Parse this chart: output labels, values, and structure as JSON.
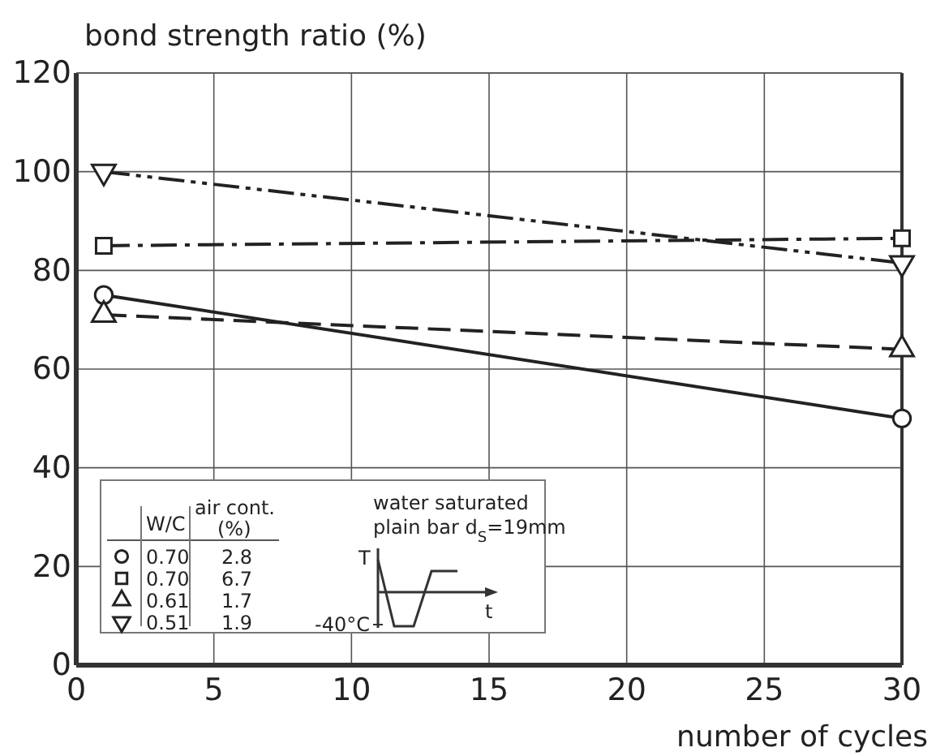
{
  "chart_data": {
    "type": "line",
    "xlabel": "number of cycles",
    "ylabel": "bond strength ratio (%)",
    "x": [
      1,
      30
    ],
    "xlim": [
      0,
      30
    ],
    "xticks": [
      0,
      5,
      10,
      15,
      20,
      25,
      30
    ],
    "ylim": [
      0,
      120
    ],
    "yticks": [
      0,
      20,
      40,
      60,
      80,
      100,
      120
    ],
    "grid": true,
    "legend": "bottom left",
    "series": [
      {
        "name": "0.70",
        "color": "#222222",
        "values": [
          75,
          50
        ],
        "marker": "circle",
        "line_style": "solid"
      },
      {
        "name": "0.70",
        "color": "#222222",
        "values": [
          85,
          86.5
        ],
        "marker": "square",
        "line_style": "dashdot"
      },
      {
        "name": "0.61",
        "color": "#222222",
        "values": [
          71,
          64
        ],
        "marker": "triangle",
        "line_style": "dashed"
      },
      {
        "name": "0.51",
        "color": "#222222",
        "values": [
          100,
          81.5
        ],
        "marker": "triangle-down",
        "line_style": "dashdotdot"
      }
    ],
    "annotations": [
      "W/C",
      "air cont.",
      "(%)",
      "2.8",
      "6.7",
      "1.7",
      "1.9",
      "water saturated",
      "plain bar d$_{S}$=19mm",
      "T",
      "t",
      "-40°C"
    ]
  }
}
